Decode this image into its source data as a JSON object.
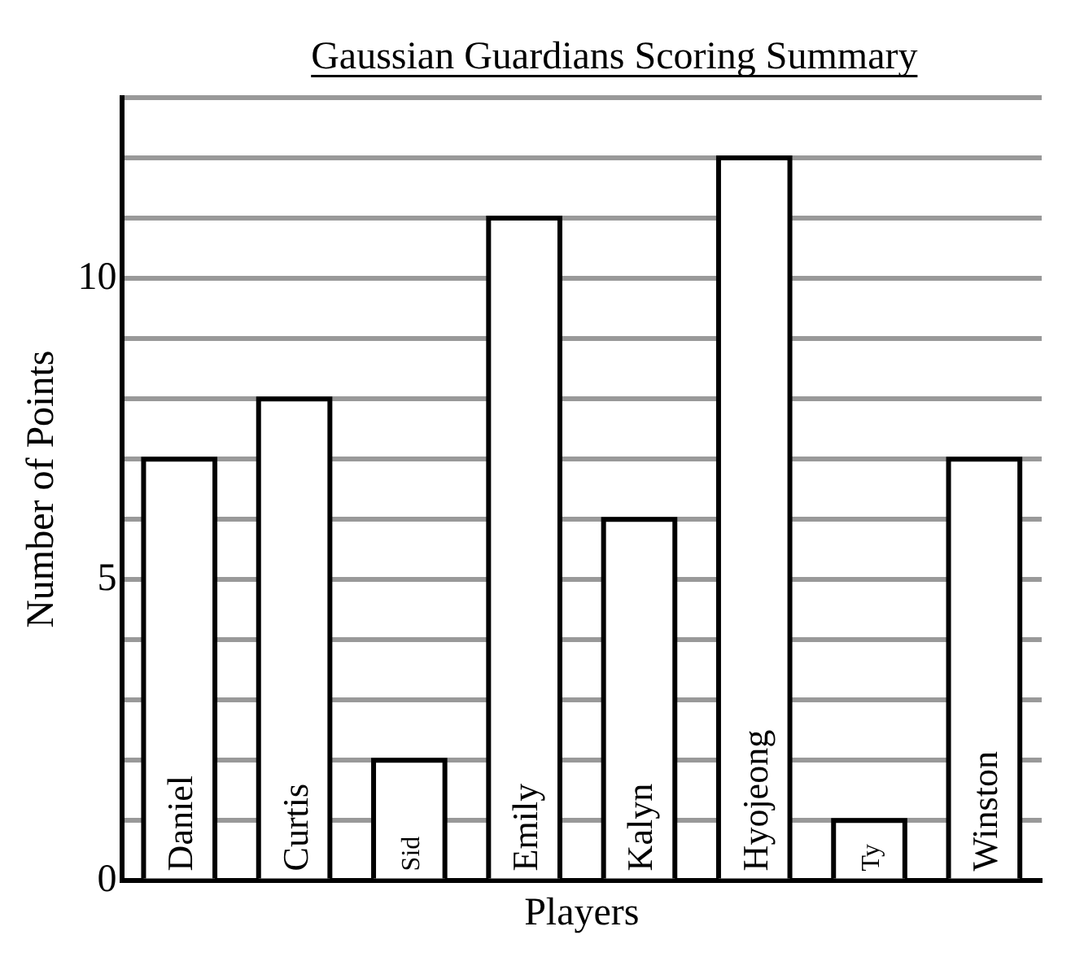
{
  "chart_data": {
    "type": "bar",
    "title": "Gaussian Guardians Scoring Summary",
    "xlabel": "Players",
    "ylabel": "Number of Points",
    "categories": [
      "Daniel",
      "Curtis",
      "Sid",
      "Emily",
      "Kalyn",
      "Hyojeong",
      "Ty",
      "Winston"
    ],
    "values": [
      7,
      8,
      2,
      11,
      6,
      12,
      1,
      7
    ],
    "color": "#ffffff",
    "ylim": [
      0,
      13
    ],
    "yticks": [
      0,
      {
        "value": 1,
        "label": null
      },
      {
        "value": 2,
        "label": null
      },
      {
        "value": 3,
        "label": null
      },
      {
        "value": 4,
        "label": null
      },
      5,
      {
        "value": 6,
        "label": null
      },
      {
        "value": 7,
        "label": null
      },
      {
        "value": 8,
        "label": null
      },
      {
        "value": 9,
        "label": null
      },
      10,
      {
        "value": 11,
        "label": null
      },
      {
        "value": 12,
        "label": null
      },
      {
        "value": 13,
        "label": null
      }
    ],
    "grid": "y",
    "legend": false
  }
}
